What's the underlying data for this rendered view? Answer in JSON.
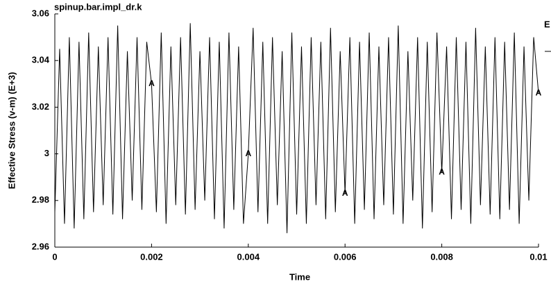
{
  "chart_data": {
    "type": "line",
    "title": "spinup.bar.impl_dr.k",
    "x_label": "Time",
    "y_label": "Effective Stress (v-m) (E+3)",
    "legend_text": "E",
    "x": [
      0,
      0.0001,
      0.0002,
      0.0003,
      0.0004,
      0.0005,
      0.0006,
      0.0007,
      0.0008,
      0.0009,
      0.001,
      0.0011,
      0.0012,
      0.0013,
      0.0014,
      0.0015,
      0.0016,
      0.0017,
      0.0018,
      0.0019,
      0.002,
      0.0021,
      0.0022,
      0.0023,
      0.0024,
      0.0025,
      0.0026,
      0.0027,
      0.0028,
      0.0029,
      0.003,
      0.0031,
      0.0032,
      0.0033,
      0.0034,
      0.0035,
      0.0036,
      0.0037,
      0.0038,
      0.0039,
      0.004,
      0.0041,
      0.0042,
      0.0043,
      0.0044,
      0.0045,
      0.0046,
      0.0047,
      0.0048,
      0.0049,
      0.005,
      0.0051,
      0.0052,
      0.0053,
      0.0054,
      0.0055,
      0.0056,
      0.0057,
      0.0058,
      0.0059,
      0.006,
      0.0061,
      0.0062,
      0.0063,
      0.0064,
      0.0065,
      0.0066,
      0.0067,
      0.0068,
      0.0069,
      0.007,
      0.0071,
      0.0072,
      0.0073,
      0.0074,
      0.0075,
      0.0076,
      0.0077,
      0.0078,
      0.0079,
      0.008,
      0.0081,
      0.0082,
      0.0083,
      0.0084,
      0.0085,
      0.0086,
      0.0087,
      0.0088,
      0.0089,
      0.009,
      0.0091,
      0.0092,
      0.0093,
      0.0094,
      0.0095,
      0.0096,
      0.0097,
      0.0098,
      0.0099,
      0.01
    ],
    "series": [
      {
        "name": "A",
        "color": "#000000",
        "marker": "A",
        "marker_every": 20,
        "values": [
          2.975,
          3.045,
          2.97,
          3.05,
          2.968,
          3.048,
          2.972,
          3.052,
          2.975,
          3.046,
          2.978,
          3.05,
          2.974,
          3.055,
          2.972,
          3.044,
          2.98,
          3.05,
          2.976,
          3.048,
          3.03,
          2.975,
          3.052,
          2.97,
          3.046,
          2.978,
          3.05,
          2.974,
          3.056,
          2.976,
          3.044,
          2.98,
          3.05,
          2.972,
          3.048,
          2.968,
          3.052,
          2.976,
          3.046,
          2.97,
          3.0,
          3.054,
          2.975,
          3.048,
          2.97,
          3.05,
          2.978,
          3.044,
          2.966,
          3.052,
          2.974,
          3.046,
          2.97,
          3.05,
          2.978,
          3.048,
          2.972,
          3.054,
          2.975,
          3.044,
          2.983,
          3.05,
          2.97,
          3.048,
          2.976,
          3.052,
          2.972,
          3.046,
          2.978,
          3.05,
          2.974,
          3.055,
          2.97,
          3.044,
          2.98,
          3.05,
          2.968,
          3.048,
          2.975,
          3.052,
          2.992,
          3.046,
          2.972,
          3.05,
          2.976,
          3.048,
          2.97,
          3.054,
          2.978,
          3.046,
          2.974,
          3.05,
          2.972,
          3.048,
          2.976,
          3.052,
          2.97,
          3.046,
          2.98,
          3.05,
          3.026
        ]
      }
    ],
    "xlim": [
      0,
      0.01
    ],
    "xticks": [
      0,
      0.002,
      0.004,
      0.006,
      0.008,
      0.01
    ],
    "ylim": [
      2.96,
      3.06
    ],
    "yticks": [
      2.96,
      2.98,
      3,
      3.02,
      3.04,
      3.06
    ],
    "grid": false
  }
}
